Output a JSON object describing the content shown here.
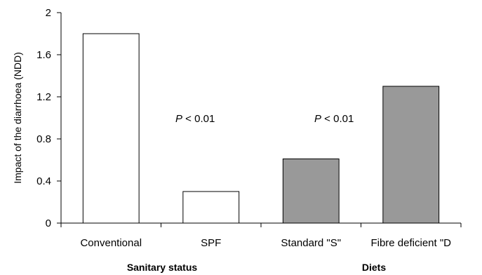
{
  "chart_data": {
    "type": "bar",
    "title": "",
    "xlabel": "",
    "ylabel": "Impact of the diarrhoea (NDD)",
    "ylim": [
      0,
      2
    ],
    "yticks": [
      "0",
      "0.4",
      "0.8",
      "1.2",
      "1.6",
      "2"
    ],
    "ytick_values": [
      0,
      0.4,
      0.8,
      1.2,
      1.6,
      2
    ],
    "grid": false,
    "categories": [
      "Conventional",
      "SPF",
      "Standard \"S\"",
      "Fibre deficient \"D"
    ],
    "values": [
      1.8,
      0.3,
      0.61,
      1.3
    ],
    "bar_colors": [
      "#ffffff",
      "#ffffff",
      "#999999",
      "#999999"
    ],
    "groups": [
      {
        "label": "Sanitary status",
        "categories": [
          "Conventional",
          "SPF"
        ]
      },
      {
        "label": "Diets",
        "categories": [
          "Standard \"S\"",
          "Fibre deficient \"D"
        ]
      }
    ],
    "annotations": [
      {
        "italic": "P",
        "text": " < 0.01"
      },
      {
        "italic": "P",
        "text": " < 0.01"
      }
    ]
  }
}
